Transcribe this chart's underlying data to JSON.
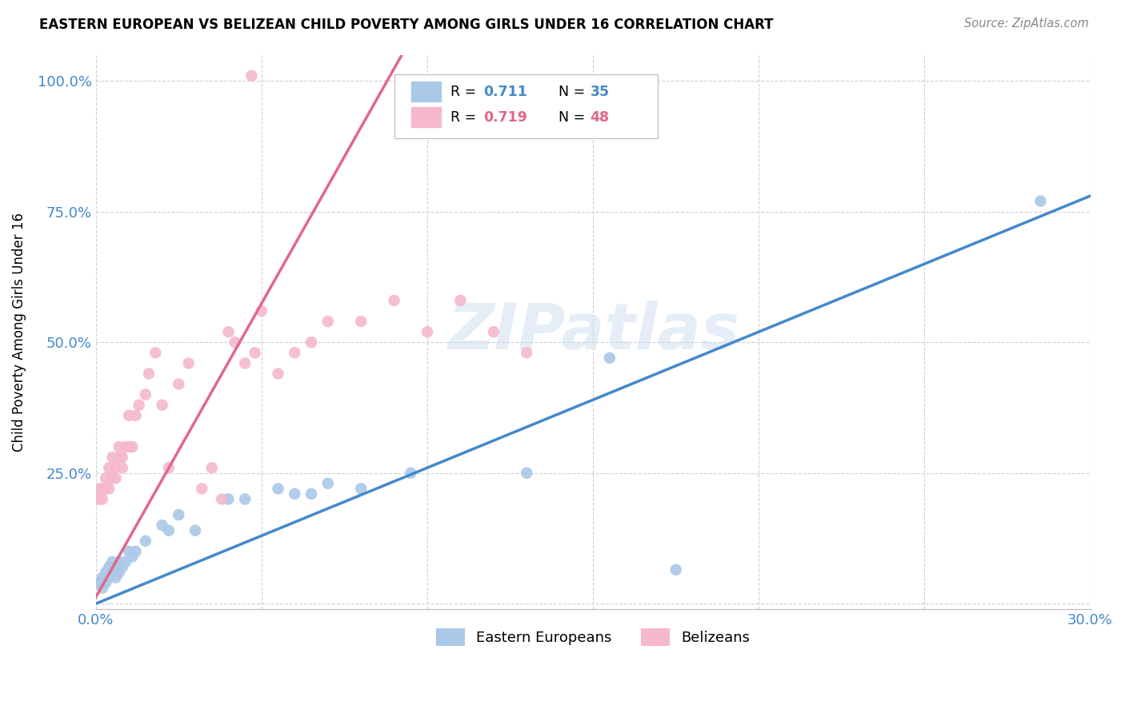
{
  "title": "EASTERN EUROPEAN VS BELIZEAN CHILD POVERTY AMONG GIRLS UNDER 16 CORRELATION CHART",
  "source": "Source: ZipAtlas.com",
  "ylabel": "Child Poverty Among Girls Under 16",
  "xlim": [
    0.0,
    0.3
  ],
  "ylim": [
    -0.01,
    1.05
  ],
  "xticks": [
    0.0,
    0.05,
    0.1,
    0.15,
    0.2,
    0.25,
    0.3
  ],
  "xticklabels": [
    "0.0%",
    "",
    "",
    "",
    "",
    "",
    "30.0%"
  ],
  "yticks": [
    0.0,
    0.25,
    0.5,
    0.75,
    1.0
  ],
  "yticklabels": [
    "",
    "25.0%",
    "50.0%",
    "75.0%",
    "100.0%"
  ],
  "grid_color": "#d0d0d0",
  "background_color": "#ffffff",
  "watermark": "ZIPatlas",
  "eastern_R": "0.711",
  "eastern_N": "35",
  "belizean_R": "0.719",
  "belizean_N": "48",
  "eastern_color": "#aac8e8",
  "belizean_color": "#f5b8cc",
  "eastern_line_color": "#4488cc",
  "belizean_line_color": "#e06888",
  "eastern_x": [
    0.001,
    0.002,
    0.002,
    0.003,
    0.003,
    0.004,
    0.004,
    0.005,
    0.005,
    0.006,
    0.006,
    0.007,
    0.007,
    0.008,
    0.009,
    0.01,
    0.011,
    0.012,
    0.015,
    0.02,
    0.022,
    0.025,
    0.03,
    0.04,
    0.045,
    0.055,
    0.06,
    0.065,
    0.07,
    0.08,
    0.095,
    0.13,
    0.155,
    0.175,
    0.285
  ],
  "eastern_y": [
    0.04,
    0.03,
    0.05,
    0.04,
    0.06,
    0.05,
    0.07,
    0.06,
    0.08,
    0.05,
    0.07,
    0.06,
    0.08,
    0.07,
    0.08,
    0.1,
    0.09,
    0.1,
    0.12,
    0.15,
    0.14,
    0.17,
    0.14,
    0.2,
    0.2,
    0.22,
    0.21,
    0.21,
    0.23,
    0.22,
    0.25,
    0.25,
    0.47,
    0.065,
    0.77
  ],
  "belizean_x": [
    0.001,
    0.001,
    0.002,
    0.002,
    0.003,
    0.003,
    0.004,
    0.004,
    0.005,
    0.005,
    0.006,
    0.006,
    0.007,
    0.007,
    0.008,
    0.008,
    0.009,
    0.01,
    0.01,
    0.011,
    0.012,
    0.013,
    0.015,
    0.016,
    0.018,
    0.02,
    0.022,
    0.025,
    0.028,
    0.032,
    0.035,
    0.038,
    0.04,
    0.042,
    0.045,
    0.048,
    0.05,
    0.055,
    0.06,
    0.065,
    0.07,
    0.08,
    0.09,
    0.1,
    0.11,
    0.12,
    0.13,
    0.047
  ],
  "belizean_y": [
    0.2,
    0.22,
    0.2,
    0.22,
    0.22,
    0.24,
    0.22,
    0.26,
    0.24,
    0.28,
    0.24,
    0.26,
    0.28,
    0.3,
    0.26,
    0.28,
    0.3,
    0.3,
    0.36,
    0.3,
    0.36,
    0.38,
    0.4,
    0.44,
    0.48,
    0.38,
    0.26,
    0.42,
    0.46,
    0.22,
    0.26,
    0.2,
    0.52,
    0.5,
    0.46,
    0.48,
    0.56,
    0.44,
    0.48,
    0.5,
    0.54,
    0.54,
    0.58,
    0.52,
    0.58,
    0.52,
    0.48,
    1.01
  ],
  "eastern_trendline": [
    0.0,
    0.3,
    0.0,
    0.78
  ],
  "belizean_trendline": [
    -0.01,
    0.095,
    -0.1,
    1.08
  ]
}
